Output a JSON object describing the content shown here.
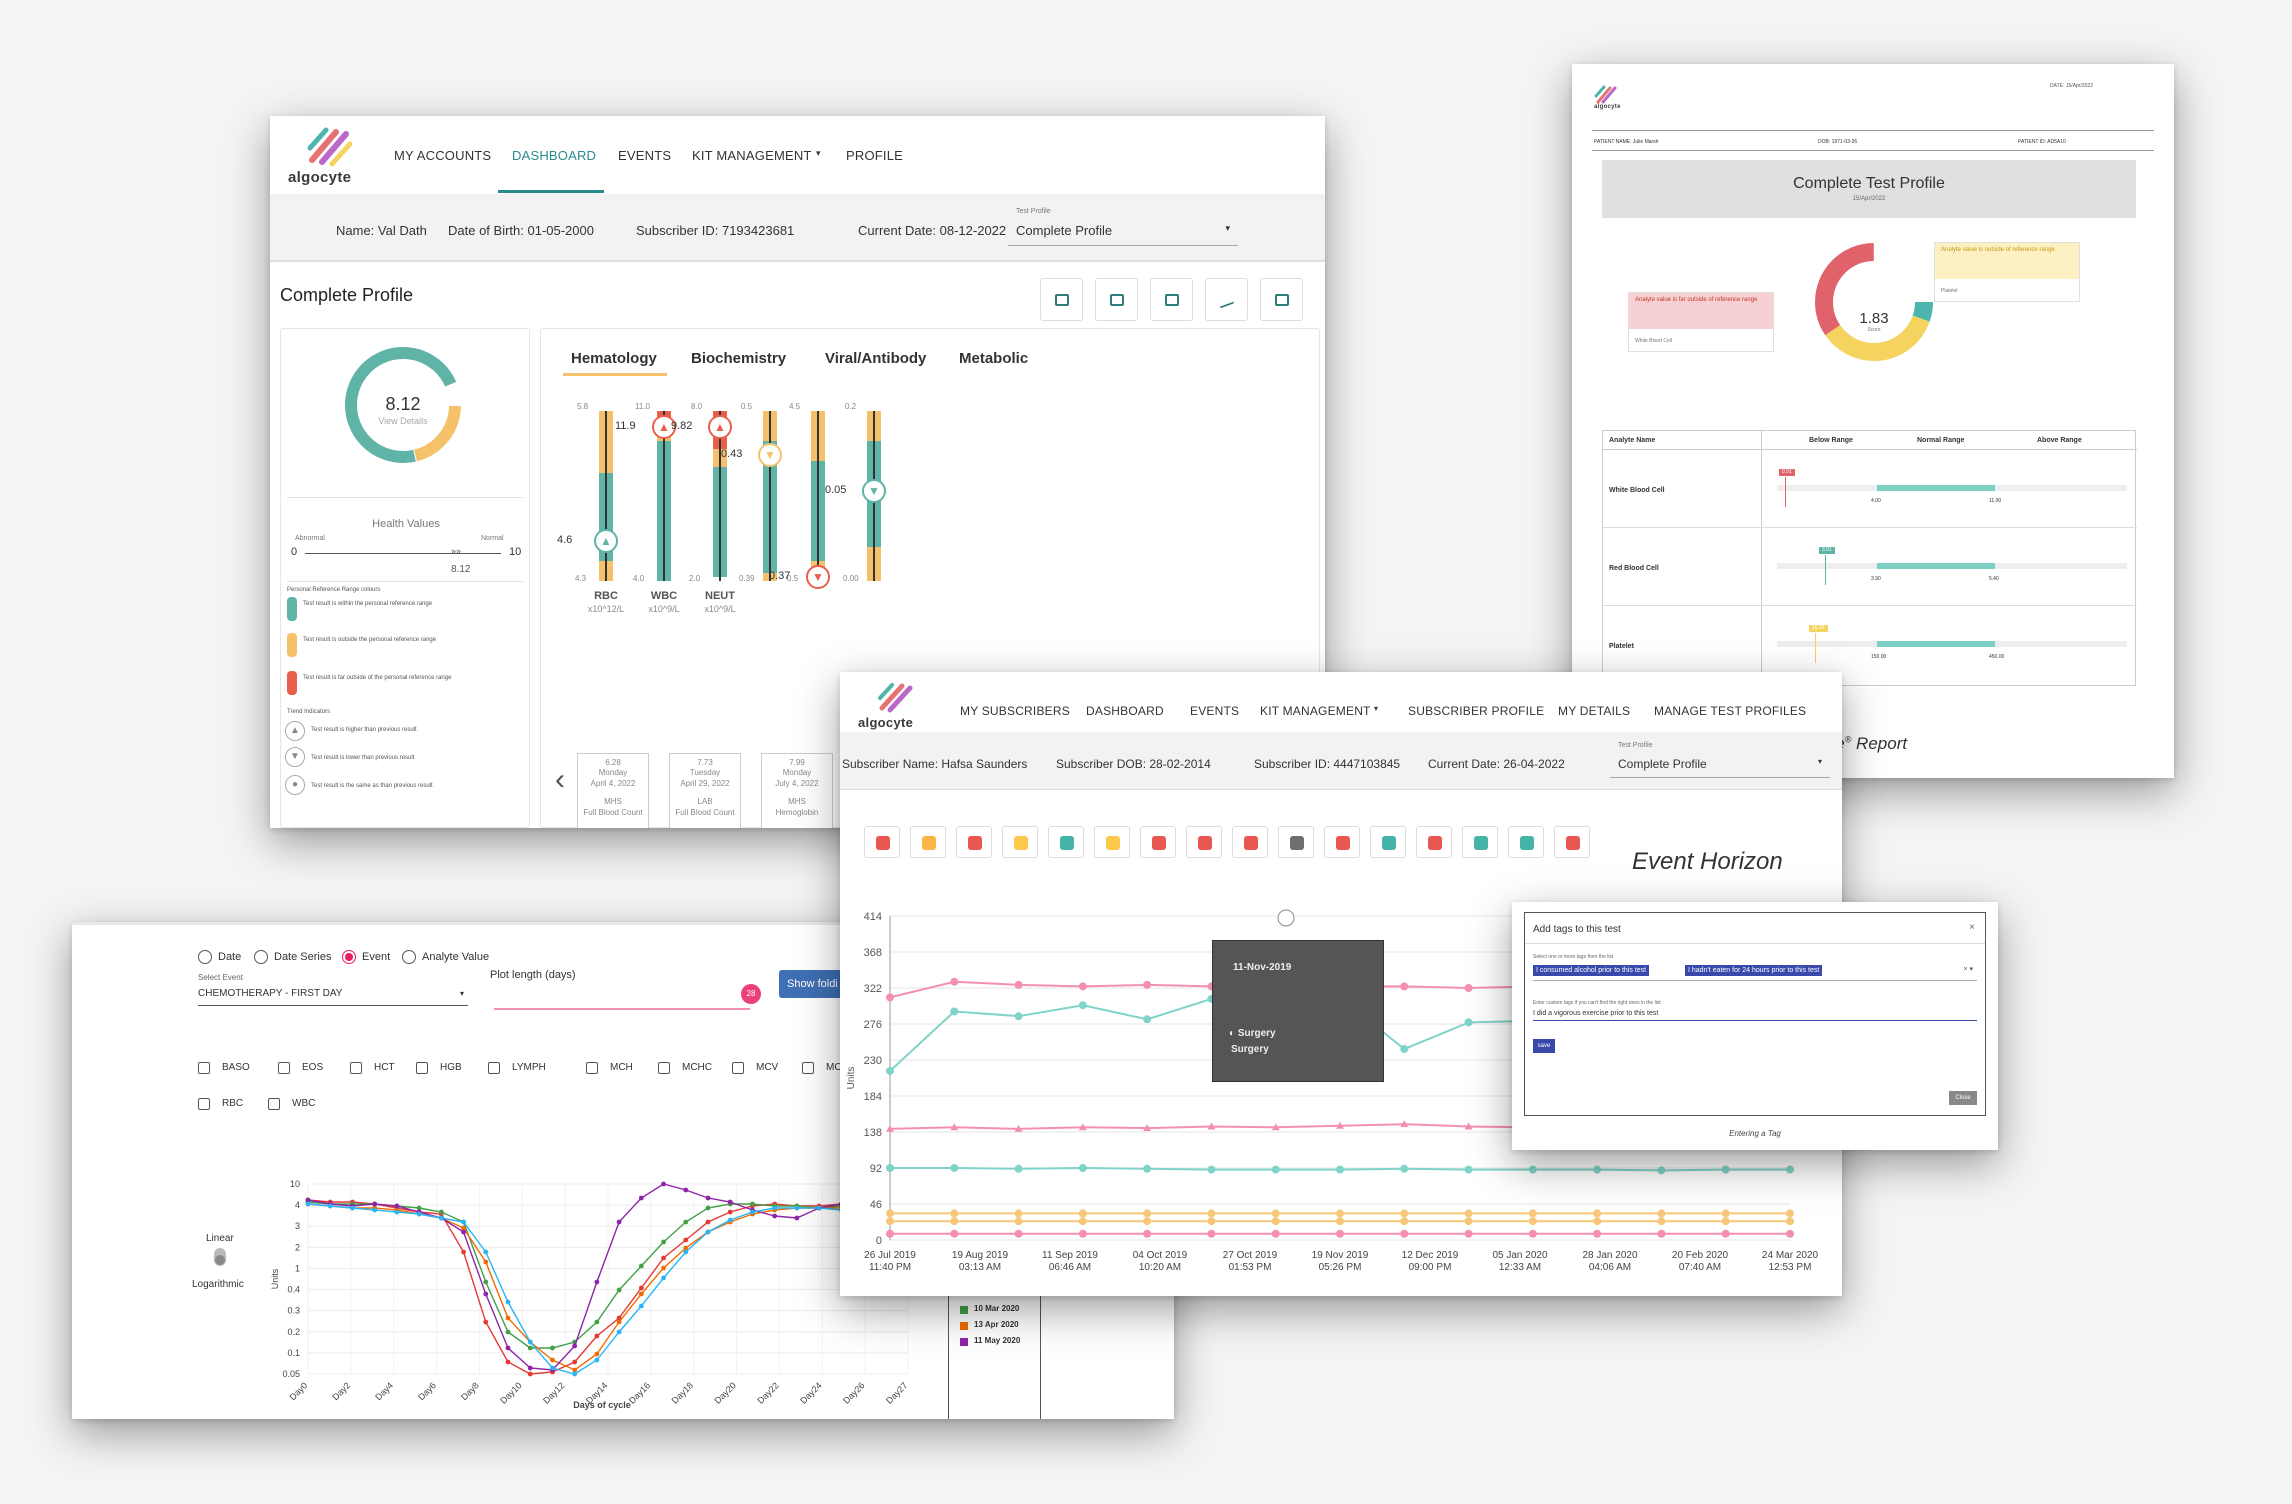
{
  "dashboard": {
    "logo": "algocyte",
    "nav": [
      "MY ACCOUNTS",
      "DASHBOARD",
      "EVENTS",
      "KIT MANAGEMENT",
      "PROFILE"
    ],
    "info": {
      "name": "Name: Val Dath",
      "dob": "Date of Birth:  01-05-2000",
      "subscriber": "Subscriber ID: 7193423681",
      "current": "Current Date:  08-12-2022"
    },
    "test_profile": {
      "label": "Test Profile",
      "value": "Complete Profile"
    },
    "title": "Complete Profile",
    "score": {
      "value": "8.12",
      "sub": "View Details"
    },
    "health": {
      "title": "Health Values",
      "abnormal": "Abnormal",
      "normal": "Normal",
      "min": "0",
      "max": "10",
      "value": "8.12"
    },
    "legend_title": "Personal Reference Range colours",
    "legend": [
      "Test result is within the personal reference range",
      "Test result is outside the personal reference range",
      "Test result is far outside of the personal reference range"
    ],
    "trend_title": "Trend Indicators",
    "trends": [
      "Test result is higher than previous result",
      "Test result is lower than previous result",
      "Test result is the same as than previous result"
    ],
    "tabs": [
      "Hematology",
      "Biochemistry",
      "Viral/Antibody",
      "Metabolic"
    ],
    "bars": [
      {
        "name": "RBC",
        "unit": "x10^12/L",
        "top": "5.8",
        "bottom": "4.3",
        "value": "4.6"
      },
      {
        "name": "WBC",
        "unit": "x10^9/L",
        "top": "11.0",
        "bottom": "4.0",
        "value": "11.9"
      },
      {
        "name": "NEUT",
        "unit": "x10^9/L",
        "top": "8.0",
        "bottom": "2.0",
        "value": "9.82"
      },
      {
        "name": "",
        "unit": "",
        "top": "0.5",
        "bottom": "0.39",
        "value": "0.43"
      },
      {
        "name": "",
        "unit": "",
        "top": "4.5",
        "bottom": "0.5",
        "value": "0.37"
      },
      {
        "name": "",
        "unit": "",
        "top": "0.2",
        "bottom": "0.00",
        "value": "0.05"
      }
    ],
    "dates": [
      {
        "num": "6.28",
        "day": "Monday",
        "date": "April 4, 2022",
        "src": "MHS",
        "test": "Full Blood Count"
      },
      {
        "num": "7.73",
        "day": "Tuesday",
        "date": "April 29, 2022",
        "src": "LAB",
        "test": "Full Blood Count"
      },
      {
        "num": "7.99",
        "day": "Monday",
        "date": "July 4, 2022",
        "src": "MHS",
        "test": "Hemoglobin"
      }
    ]
  },
  "report": {
    "date": "DATE: 15/Apr/2022",
    "patient": "PATIENT NAME: Julie Marsh",
    "dob": "DOB: 1971-03-26",
    "pid": "PATIENT ID: AD5A10",
    "title": "Complete Test Profile",
    "subtitle": "15/Apr/2022",
    "score": "1.83",
    "score_label": "Score",
    "note_yellow": "Analyte value is outside of reference range",
    "note_yellow_sub": "Platelet",
    "note_red": "Analyte value is far outside of reference range",
    "note_red_sub": "White Blood Cell",
    "cols": [
      "Analyte Name",
      "Below Range",
      "Normal Range",
      "Above Range"
    ],
    "rows": [
      {
        "name": "White Blood Cell",
        "val": "0.91",
        "lo": "4.00",
        "hi": "11.00"
      },
      {
        "name": "Red Blood Cell",
        "val": "3.91",
        "lo": "3.90",
        "hi": "5.40"
      },
      {
        "name": "Platelet",
        "val": "16.26",
        "lo": "150.00",
        "hi": "450.00"
      }
    ],
    "caption": "yte",
    "caption_tail": " Report"
  },
  "events": {
    "logo": "algocyte",
    "nav": [
      "MY SUBSCRIBERS",
      "DASHBOARD",
      "EVENTS",
      "KIT MANAGEMENT",
      "SUBSCRIBER PROFILE",
      "MY DETAILS",
      "MANAGE TEST PROFILES"
    ],
    "info": {
      "name": "Subscriber Name: Hafsa Saunders",
      "dob": "Subscriber DOB:  28-02-2014",
      "id": "Subscriber ID: 4447103845",
      "current": "Current Date:  26-04-2022"
    },
    "test_profile": {
      "label": "Test Profile",
      "value": "Complete Profile"
    },
    "title": "Event Horizon",
    "tooltip": {
      "date": "11-Nov-2019",
      "line1": "Surgery",
      "line2": "Surgery"
    },
    "ylabel": "Units",
    "yticks": [
      "414",
      "368",
      "322",
      "276",
      "230",
      "184",
      "138",
      "92",
      "46",
      "0"
    ],
    "xticks": [
      [
        "26 Jul 2019",
        "11:40 PM"
      ],
      [
        "19 Aug 2019",
        "03:13 AM"
      ],
      [
        "11 Sep 2019",
        "06:46 AM"
      ],
      [
        "04 Oct 2019",
        "10:20 AM"
      ],
      [
        "27 Oct 2019",
        "01:53 PM"
      ],
      [
        "19 Nov 2019",
        "05:26 PM"
      ],
      [
        "12 Dec 2019",
        "09:00 PM"
      ],
      [
        "05 Jan 2020",
        "12:33 AM"
      ],
      [
        "28 Jan 2020",
        "04:06 AM"
      ],
      [
        "20 Feb 2020",
        "07:40 AM"
      ],
      [
        "24 Mar 2020",
        "12:53 PM"
      ]
    ]
  },
  "tag_dialog": {
    "title": "Add tags to this test",
    "select_label": "Select one or more tags from the list",
    "chips": [
      "I consumed alcohol prior to this test",
      "I hadn't eaten for 24 hours prior to this test"
    ],
    "custom_label": "Enter custom tags if you can't find the right ones in the list",
    "custom_value": "I did a vigorous exercise prior to this test",
    "save": "save",
    "close": "Close",
    "caption": "Entering a Tag"
  },
  "cycle": {
    "radios": [
      "Date",
      "Date Series",
      "Event",
      "Analyte Value"
    ],
    "event_label": "Select Event",
    "event_value": "CHEMOTHERAPY - FIRST DAY",
    "plot_label": "Plot length (days)",
    "slider_value": "28",
    "button": "Show foldi",
    "analytes": [
      "BASO",
      "EOS",
      "HCT",
      "HGB",
      "LYMPH",
      "MCH",
      "MCHC",
      "MCV",
      "MON",
      "RBC",
      "WBC"
    ],
    "scale": [
      "Linear",
      "Logarithmic"
    ],
    "ylabel": "Units",
    "xlabel": "Days of cycle",
    "yticks": [
      "10",
      "4",
      "3",
      "2",
      "1",
      "0.4",
      "0.3",
      "0.2",
      "0.1",
      "0.05"
    ],
    "xticks": [
      "Day0",
      "Day2",
      "Day4",
      "Day6",
      "Day8",
      "Day10",
      "Day12",
      "Day14",
      "Day16",
      "Day18",
      "Day20",
      "Day22",
      "Day24",
      "Day26",
      "Day27"
    ],
    "legend": [
      {
        "label": "10 Mar 2020",
        "color": "#43a047"
      },
      {
        "label": "13 Apr 2020",
        "color": "#ef6c00"
      },
      {
        "label": "11 May 2020",
        "color": "#8e24aa"
      }
    ]
  }
}
